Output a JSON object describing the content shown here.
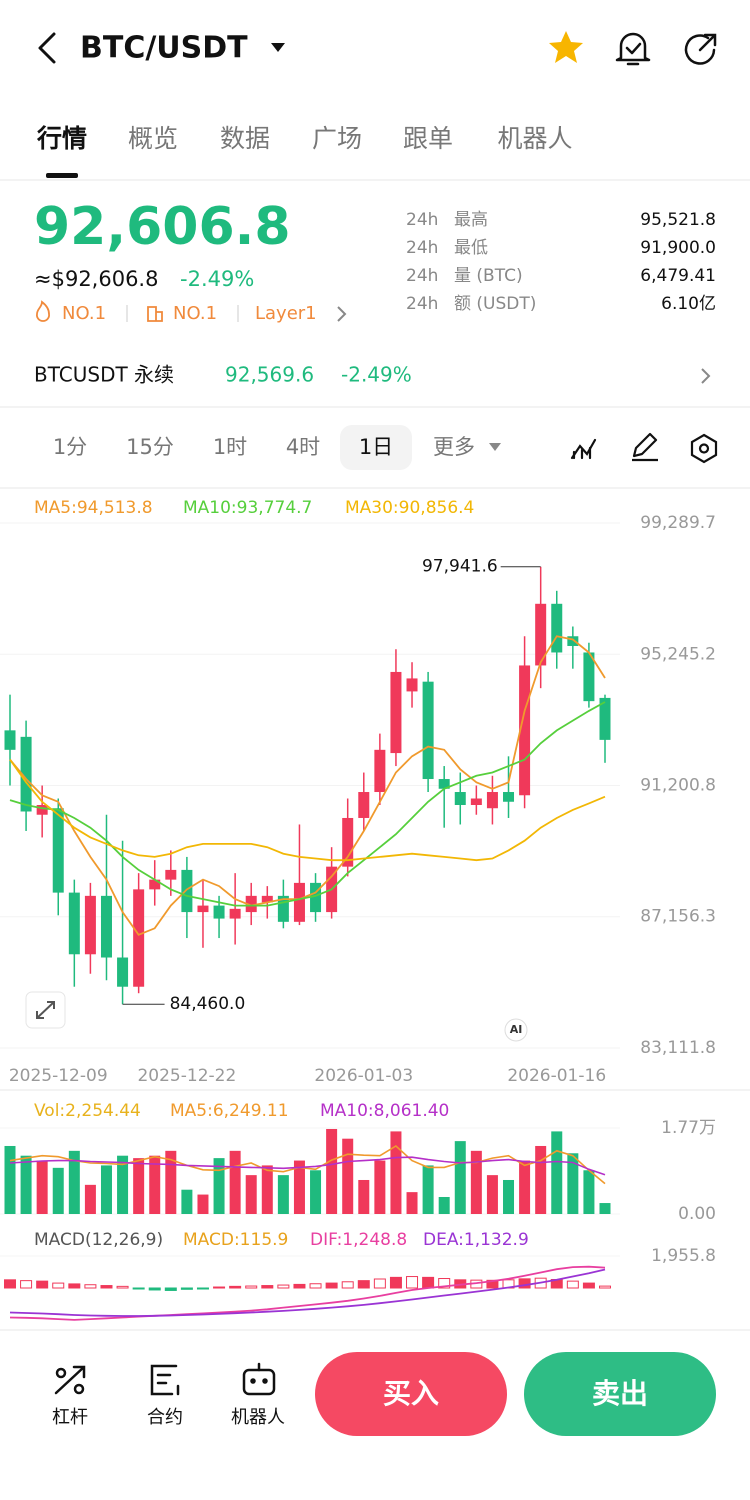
{
  "header": {
    "title": "BTC/USDT"
  },
  "tabs": [
    "行情",
    "概览",
    "数据",
    "广场",
    "跟单",
    "机器人"
  ],
  "active_tab": 0,
  "ticker": {
    "price": "92,606.8",
    "usd": "≈$92,606.8",
    "change": "-2.49%",
    "badges": [
      "NO.1",
      "NO.1",
      "Layer1"
    ]
  },
  "stats": [
    {
      "period": "24h",
      "label": "最高",
      "value": "95,521.8"
    },
    {
      "period": "24h",
      "label": "最低",
      "value": "91,900.0"
    },
    {
      "period": "24h",
      "label": "量 (BTC)",
      "value": "6,479.41"
    },
    {
      "period": "24h",
      "label": "额 (USDT)",
      "value": "6.10亿"
    }
  ],
  "perpetual": {
    "name": "BTCUSDT 永续",
    "price": "92,569.6",
    "change": "-2.49%"
  },
  "timeframes": [
    "1分",
    "15分",
    "1时",
    "4时",
    "1日",
    "更多"
  ],
  "active_timeframe": 4,
  "chart": {
    "type": "candlestick",
    "up_color": "#f0395a",
    "down_color": "#1fba7e",
    "categories": [
      null,
      null,
      null,
      "2025-12-09",
      null,
      null,
      null,
      null,
      null,
      null,
      null,
      "2025-12-22",
      null,
      null,
      null,
      null,
      null,
      null,
      null,
      null,
      null,
      null,
      "2026-01-03",
      null,
      null,
      null,
      null,
      null,
      null,
      null,
      null,
      null,
      null,
      null,
      "2026-01-16",
      null,
      null,
      null
    ],
    "open": [
      92900,
      92700,
      90300,
      90500,
      87900,
      86000,
      87800,
      85900,
      85000,
      88000,
      88300,
      88600,
      87300,
      87500,
      87100,
      87300,
      87600,
      87800,
      87000,
      88200,
      87300,
      88700,
      90200,
      91000,
      92200,
      94100,
      94400,
      91400,
      91000,
      90600,
      90500,
      91000,
      90900,
      94900,
      96800,
      95800,
      95300,
      93900
    ],
    "close": [
      92300,
      90400,
      90600,
      87900,
      86000,
      87800,
      85900,
      85000,
      88000,
      88300,
      88600,
      87300,
      87500,
      87100,
      87400,
      87800,
      87800,
      87000,
      88200,
      87300,
      88700,
      90200,
      91000,
      92300,
      94700,
      94500,
      91400,
      91100,
      90600,
      90800,
      91000,
      90700,
      94900,
      96800,
      95300,
      95500,
      93800,
      92606.8
    ],
    "high": [
      94000,
      93200,
      91200,
      90800,
      88300,
      88200,
      90300,
      89500,
      88500,
      88900,
      89200,
      89000,
      88300,
      87800,
      88500,
      88200,
      88100,
      88300,
      90000,
      88500,
      89300,
      90800,
      91600,
      92800,
      95400,
      95000,
      94700,
      91800,
      91600,
      91200,
      91500,
      92100,
      95800,
      97941.6,
      97200,
      96100,
      95600,
      94000
    ],
    "low": [
      91200,
      89800,
      89600,
      87200,
      85000,
      85400,
      85200,
      84460,
      84800,
      87500,
      87800,
      86500,
      86200,
      86500,
      86300,
      86900,
      87100,
      86800,
      86900,
      87000,
      87100,
      88400,
      89800,
      90600,
      91800,
      93600,
      91000,
      89900,
      90000,
      90300,
      90000,
      90200,
      90500,
      94200,
      94800,
      94800,
      93600,
      91900
    ],
    "ylim": [
      83111.8,
      99289.7
    ],
    "yticks": [
      {
        "value": 99289.7,
        "label": "99,289.7"
      },
      {
        "value": 95245.2,
        "label": "95,245.2"
      },
      {
        "value": 91200.8,
        "label": "91,200.8"
      },
      {
        "value": 87156.3,
        "label": "87,156.3"
      },
      {
        "value": 83111.8,
        "label": "83,111.8"
      }
    ],
    "grid": true,
    "ma": [
      {
        "name": "MA5:94,513.8",
        "color": "#f09a2d",
        "values": [
          92000,
          91400,
          90900,
          90700,
          89800,
          89000,
          88300,
          87300,
          86600,
          86800,
          87500,
          88000,
          88300,
          88100,
          87700,
          87500,
          87600,
          87700,
          87700,
          87900,
          88400,
          89000,
          89800,
          90700,
          91600,
          92100,
          92400,
          92300,
          91700,
          91300,
          91100,
          91300,
          93500,
          95000,
          95800,
          95700,
          95300,
          94513.8
        ]
      },
      {
        "name": "MA10:93,774.7",
        "color": "#56cf3c",
        "values": [
          90750,
          90600,
          90500,
          90450,
          90200,
          89900,
          89500,
          89000,
          88600,
          88300,
          88000,
          87800,
          87700,
          87600,
          87500,
          87500,
          87500,
          87600,
          87700,
          87800,
          88000,
          88500,
          88900,
          89300,
          89700,
          90200,
          90700,
          91100,
          91300,
          91500,
          91600,
          91800,
          92000,
          92500,
          92900,
          93200,
          93500,
          93774.7
        ]
      },
      {
        "name": "MA30:90,856.4",
        "color": "#f2b705",
        "values": [
          92000,
          91300,
          90700,
          90300,
          89900,
          89600,
          89400,
          89200,
          89050,
          89000,
          89100,
          89300,
          89400,
          89400,
          89400,
          89400,
          89300,
          89100,
          89000,
          88950,
          88900,
          88900,
          88950,
          89000,
          89050,
          89100,
          89050,
          89000,
          88950,
          88900,
          88950,
          89200,
          89500,
          89900,
          90200,
          90450,
          90650,
          90856.4
        ]
      }
    ],
    "annotations": [
      {
        "value": 97941.6,
        "label": "97,941.6"
      },
      {
        "value": 84460,
        "label": "84,460.0"
      }
    ],
    "badge": "AI"
  },
  "volume": {
    "name": "Vol:2,254.44",
    "color": "#e8b21c",
    "values": [
      14000,
      12000,
      11000,
      9500,
      13000,
      6000,
      10000,
      12000,
      11500,
      12000,
      13000,
      5000,
      4000,
      11500,
      13000,
      8000,
      10000,
      8000,
      11000,
      9000,
      17500,
      15500,
      7000,
      11000,
      17000,
      4500,
      10000,
      3500,
      15000,
      13000,
      8000,
      7000,
      11000,
      14000,
      17000,
      12500,
      9000,
      2254.44
    ],
    "ylim": [
      0,
      17700
    ],
    "yticks": [
      {
        "value": 17700,
        "label": "1.77万"
      },
      {
        "value": 0,
        "label": "0.00"
      }
    ],
    "ma": [
      {
        "name": "MA5:6,249.11",
        "color": "#f09a2d",
        "values": [
          11000,
          11500,
          12000,
          11800,
          11000,
          10500,
          10400,
          10200,
          11000,
          11800,
          11200,
          10000,
          9100,
          9000,
          9800,
          10500,
          9000,
          8700,
          9600,
          9200,
          11100,
          12300,
          12100,
          12000,
          14000,
          11000,
          9600,
          9600,
          10600,
          10600,
          11500,
          12000,
          10000,
          11000,
          13000,
          12000,
          9000,
          6249.11
        ]
      },
      {
        "name": "MA10:8,061.40",
        "color": "#b530c8",
        "values": [
          10500,
          10700,
          10900,
          11000,
          11000,
          10800,
          10700,
          10600,
          10400,
          10300,
          10200,
          10000,
          9900,
          9800,
          9700,
          9600,
          9500,
          9400,
          9600,
          9800,
          10200,
          10800,
          11000,
          11200,
          11600,
          11700,
          11200,
          10800,
          10500,
          10700,
          11000,
          11200,
          10800,
          10600,
          10800,
          10600,
          9200,
          8061.4
        ]
      }
    ]
  },
  "macd": {
    "name": "MACD(12,26,9)",
    "ylim": [
      -1955.8,
      1955.8
    ],
    "yticks": [
      {
        "value": 1955.8,
        "label": "1,955.8"
      }
    ],
    "hist": {
      "name": "MACD:115.9",
      "color": "#e8a21c",
      "values": [
        500,
        450,
        420,
        300,
        250,
        200,
        150,
        100,
        -50,
        -120,
        -150,
        -80,
        -30,
        60,
        100,
        120,
        150,
        180,
        220,
        260,
        300,
        380,
        450,
        550,
        650,
        700,
        650,
        580,
        500,
        480,
        470,
        500,
        560,
        600,
        520,
        420,
        300,
        115.9
      ]
    },
    "dif": {
      "name": "DIF:1,248.8",
      "color": "#e83fa0",
      "values": [
        -1800,
        -1820,
        -1850,
        -1900,
        -1950,
        -1900,
        -1850,
        -1800,
        -1750,
        -1700,
        -1650,
        -1600,
        -1550,
        -1500,
        -1450,
        -1380,
        -1300,
        -1200,
        -1100,
        -1000,
        -900,
        -780,
        -640,
        -480,
        -300,
        -120,
        0,
        100,
        200,
        300,
        420,
        560,
        750,
        950,
        1150,
        1280,
        1300,
        1248.8
      ]
    },
    "dea": {
      "name": "DEA:1,132.9",
      "color": "#9a34d4",
      "values": [
        -1500,
        -1530,
        -1560,
        -1600,
        -1650,
        -1680,
        -1700,
        -1710,
        -1710,
        -1700,
        -1680,
        -1650,
        -1620,
        -1580,
        -1540,
        -1500,
        -1450,
        -1400,
        -1340,
        -1270,
        -1200,
        -1120,
        -1030,
        -930,
        -820,
        -700,
        -580,
        -460,
        -340,
        -220,
        -100,
        30,
        170,
        330,
        500,
        700,
        900,
        1132.9
      ]
    }
  },
  "bottom_bar": {
    "tools": [
      "杠杆",
      "合约",
      "机器人"
    ],
    "buy": "买入",
    "sell": "卖出"
  }
}
